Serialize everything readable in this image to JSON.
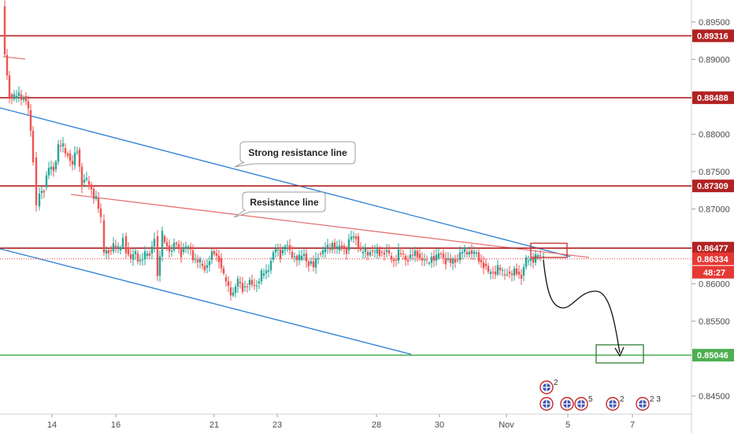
{
  "chart_data": {
    "type": "candlestick",
    "y_axis": {
      "range": [
        0.8425,
        0.8975
      ],
      "ticks": [
        "0.89500",
        "0.89000",
        "0.88000",
        "0.87500",
        "0.87000",
        "0.86000",
        "0.85500",
        "0.84500"
      ]
    },
    "x_axis": {
      "ticks": [
        "14",
        "16",
        "21",
        "23",
        "28",
        "30",
        "Nov",
        "5",
        "7"
      ]
    },
    "price_lines": [
      {
        "label": "0.89316",
        "value": 0.89316,
        "color": "#b22222"
      },
      {
        "label": "0.88488",
        "value": 0.88488,
        "color": "#b22222"
      },
      {
        "label": "0.87309",
        "value": 0.87309,
        "color": "#b22222"
      },
      {
        "label": "0.86477",
        "value": 0.86477,
        "color": "#b22222"
      },
      {
        "label": "0.85046",
        "value": 0.85046,
        "color": "#4caf50"
      }
    ],
    "current_price": {
      "label": "0.86334",
      "value": 0.86334,
      "color": "#e53935"
    },
    "countdown": "48:27",
    "annotations": [
      {
        "text": "Strong resistance line"
      },
      {
        "text": "Resistance line"
      }
    ],
    "event_badges": [
      "2",
      "5",
      "2",
      "2 3"
    ],
    "colors": {
      "up": "#26a69a",
      "down": "#ef5350",
      "channel": "#2a7fd4",
      "resistance": "#e57373",
      "support_zone": "#4caf50"
    }
  }
}
